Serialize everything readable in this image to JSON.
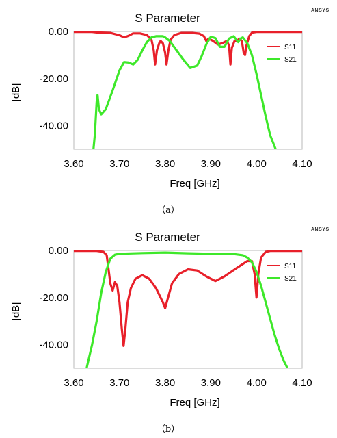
{
  "chart_data": [
    {
      "type": "line",
      "title": "S Parameter",
      "brand": "ANSYS",
      "caption": "（a）",
      "xlabel": "Freq [GHz]",
      "ylabel": "[dB]",
      "xlim": [
        3.6,
        4.1
      ],
      "ylim": [
        -50,
        0
      ],
      "x_ticks": [
        "3.60",
        "3.70",
        "3.80",
        "3.90",
        "4.00",
        "4.10"
      ],
      "y_ticks": [
        "0.00",
        "-20.00",
        "-40.00"
      ],
      "legend": "top-right",
      "grid": false,
      "series": [
        {
          "name": "S11",
          "color": "#e8202a",
          "points": [
            [
              3.6,
              -0.2
            ],
            [
              3.64,
              -0.2
            ],
            [
              3.65,
              -0.4
            ],
            [
              3.68,
              -0.6
            ],
            [
              3.7,
              -1.6
            ],
            [
              3.71,
              -2.5
            ],
            [
              3.72,
              -1.8
            ],
            [
              3.73,
              -0.8
            ],
            [
              3.745,
              -0.8
            ],
            [
              3.76,
              -1.5
            ],
            [
              3.77,
              -3.5
            ],
            [
              3.775,
              -8
            ],
            [
              3.778,
              -14
            ],
            [
              3.782,
              -8
            ],
            [
              3.787,
              -5
            ],
            [
              3.79,
              -4
            ],
            [
              3.795,
              -5
            ],
            [
              3.8,
              -9
            ],
            [
              3.803,
              -14
            ],
            [
              3.807,
              -8
            ],
            [
              3.812,
              -3.5
            ],
            [
              3.82,
              -1.5
            ],
            [
              3.835,
              -0.6
            ],
            [
              3.86,
              -0.6
            ],
            [
              3.875,
              -0.9
            ],
            [
              3.885,
              -2
            ],
            [
              3.89,
              -4
            ],
            [
              3.895,
              -3
            ],
            [
              3.905,
              -4
            ],
            [
              3.915,
              -5.5
            ],
            [
              3.925,
              -5
            ],
            [
              3.935,
              -4
            ],
            [
              3.94,
              -6
            ],
            [
              3.943,
              -14
            ],
            [
              3.946,
              -7
            ],
            [
              3.952,
              -4
            ],
            [
              3.958,
              -4
            ],
            [
              3.962,
              -3
            ],
            [
              3.968,
              -4
            ],
            [
              3.972,
              -9
            ],
            [
              3.975,
              -10
            ],
            [
              3.978,
              -6
            ],
            [
              3.984,
              -2
            ],
            [
              3.99,
              -0.5
            ],
            [
              4.0,
              -0.2
            ],
            [
              4.1,
              -0.2
            ]
          ]
        },
        {
          "name": "S21",
          "color": "#3ee82a",
          "points": [
            [
              3.643,
              -50
            ],
            [
              3.646,
              -44
            ],
            [
              3.65,
              -30
            ],
            [
              3.652,
              -27
            ],
            [
              3.655,
              -33
            ],
            [
              3.66,
              -35.2
            ],
            [
              3.67,
              -33
            ],
            [
              3.685,
              -25
            ],
            [
              3.7,
              -16.5
            ],
            [
              3.71,
              -13
            ],
            [
              3.72,
              -13.2
            ],
            [
              3.73,
              -14
            ],
            [
              3.74,
              -12
            ],
            [
              3.75,
              -8
            ],
            [
              3.76,
              -4.5
            ],
            [
              3.77,
              -2.5
            ],
            [
              3.78,
              -2
            ],
            [
              3.795,
              -2
            ],
            [
              3.8,
              -2.5
            ],
            [
              3.81,
              -4
            ],
            [
              3.825,
              -8
            ],
            [
              3.84,
              -12
            ],
            [
              3.855,
              -15.5
            ],
            [
              3.87,
              -14.5
            ],
            [
              3.88,
              -10.5
            ],
            [
              3.89,
              -5.5
            ],
            [
              3.9,
              -2.2
            ],
            [
              3.91,
              -2.8
            ],
            [
              3.92,
              -6.5
            ],
            [
              3.93,
              -6.5
            ],
            [
              3.94,
              -3
            ],
            [
              3.95,
              -2
            ],
            [
              3.96,
              -4.5
            ],
            [
              3.965,
              -3
            ],
            [
              3.97,
              -2.5
            ],
            [
              3.98,
              -5
            ],
            [
              3.99,
              -10
            ],
            [
              4.0,
              -18
            ],
            [
              4.01,
              -27
            ],
            [
              4.02,
              -36
            ],
            [
              4.03,
              -44
            ],
            [
              4.042,
              -50
            ]
          ]
        }
      ]
    },
    {
      "type": "line",
      "title": "S Parameter",
      "brand": "ANSYS",
      "caption": "（b）",
      "xlabel": "Freq [GHz]",
      "ylabel": "[dB]",
      "xlim": [
        3.6,
        4.1
      ],
      "ylim": [
        -50,
        0
      ],
      "x_ticks": [
        "3.60",
        "3.70",
        "3.80",
        "3.90",
        "4.00",
        "4.10"
      ],
      "y_ticks": [
        "0.00",
        "-20.00",
        "-40.00"
      ],
      "legend": "top-right",
      "grid": false,
      "series": [
        {
          "name": "S11",
          "color": "#e8202a",
          "points": [
            [
              3.6,
              -0.2
            ],
            [
              3.65,
              -0.2
            ],
            [
              3.665,
              -0.6
            ],
            [
              3.672,
              -2
            ],
            [
              3.676,
              -8
            ],
            [
              3.68,
              -14
            ],
            [
              3.685,
              -17
            ],
            [
              3.69,
              -13.5
            ],
            [
              3.695,
              -15
            ],
            [
              3.7,
              -22
            ],
            [
              3.705,
              -33
            ],
            [
              3.709,
              -40.5
            ],
            [
              3.713,
              -33
            ],
            [
              3.718,
              -22
            ],
            [
              3.725,
              -16
            ],
            [
              3.735,
              -12
            ],
            [
              3.75,
              -10.5
            ],
            [
              3.765,
              -12
            ],
            [
              3.78,
              -16
            ],
            [
              3.795,
              -22
            ],
            [
              3.8,
              -24.5
            ],
            [
              3.805,
              -21
            ],
            [
              3.815,
              -14
            ],
            [
              3.83,
              -10
            ],
            [
              3.85,
              -8
            ],
            [
              3.87,
              -8.5
            ],
            [
              3.89,
              -11
            ],
            [
              3.91,
              -13
            ],
            [
              3.93,
              -11
            ],
            [
              3.96,
              -7
            ],
            [
              3.98,
              -4.5
            ],
            [
              3.99,
              -4.5
            ],
            [
              3.996,
              -10
            ],
            [
              4.0,
              -20
            ],
            [
              4.004,
              -10
            ],
            [
              4.01,
              -3
            ],
            [
              4.02,
              -0.6
            ],
            [
              4.03,
              -0.2
            ],
            [
              4.1,
              -0.2
            ]
          ]
        },
        {
          "name": "S21",
          "color": "#3ee82a",
          "points": [
            [
              3.628,
              -50
            ],
            [
              3.64,
              -40
            ],
            [
              3.65,
              -30
            ],
            [
              3.66,
              -18
            ],
            [
              3.67,
              -9
            ],
            [
              3.68,
              -3.5
            ],
            [
              3.69,
              -1.8
            ],
            [
              3.7,
              -1.4
            ],
            [
              3.75,
              -1.1
            ],
            [
              3.8,
              -0.9
            ],
            [
              3.85,
              -1.2
            ],
            [
              3.9,
              -1.4
            ],
            [
              3.95,
              -1.5
            ],
            [
              3.97,
              -2
            ],
            [
              3.98,
              -3
            ],
            [
              3.99,
              -5
            ],
            [
              4.0,
              -9
            ],
            [
              4.01,
              -15
            ],
            [
              4.02,
              -22
            ],
            [
              4.03,
              -29
            ],
            [
              4.04,
              -36
            ],
            [
              4.05,
              -42
            ],
            [
              4.06,
              -47
            ],
            [
              4.068,
              -50
            ]
          ]
        }
      ]
    }
  ]
}
